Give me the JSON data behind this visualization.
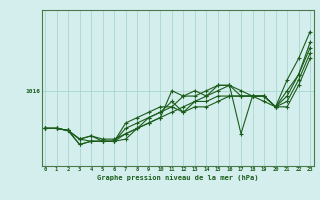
{
  "title": "Graphe pression niveau de la mer (hPa)",
  "bg_color": "#d4eeed",
  "grid_color": "#a8d5d0",
  "line_color": "#1a5c1a",
  "axis_color": "#4a7a4a",
  "x_ticks": [
    0,
    1,
    2,
    3,
    4,
    5,
    6,
    7,
    8,
    9,
    10,
    11,
    12,
    13,
    14,
    15,
    16,
    17,
    18,
    19,
    20,
    21,
    22,
    23
  ],
  "y_label_value": 1016,
  "series": [
    [
      1012.5,
      1012.5,
      1012.3,
      1011.5,
      1011.8,
      1011.5,
      1011.5,
      1012.0,
      1012.5,
      1013.0,
      1013.5,
      1016.0,
      1015.5,
      1016.0,
      1015.5,
      1016.5,
      1016.5,
      1012.0,
      1015.5,
      1015.5,
      1014.5,
      1017.0,
      1019.0,
      1021.5
    ],
    [
      1012.5,
      1012.5,
      1012.3,
      1011.0,
      1011.3,
      1011.3,
      1011.3,
      1011.5,
      1012.5,
      1013.0,
      1013.5,
      1014.0,
      1014.5,
      1015.0,
      1015.0,
      1015.5,
      1015.5,
      1015.5,
      1015.5,
      1015.5,
      1014.5,
      1015.0,
      1017.0,
      1019.5
    ],
    [
      1012.5,
      1012.5,
      1012.3,
      1011.5,
      1011.3,
      1011.3,
      1011.3,
      1013.0,
      1013.5,
      1014.0,
      1014.5,
      1014.5,
      1015.5,
      1015.5,
      1016.0,
      1016.5,
      1016.5,
      1015.5,
      1015.5,
      1015.5,
      1014.5,
      1016.0,
      1017.5,
      1020.5
    ],
    [
      1012.5,
      1012.5,
      1012.3,
      1011.0,
      1011.3,
      1011.3,
      1011.3,
      1012.0,
      1012.5,
      1013.5,
      1014.0,
      1015.0,
      1014.0,
      1014.5,
      1014.5,
      1015.0,
      1015.5,
      1015.5,
      1015.5,
      1015.0,
      1014.5,
      1014.5,
      1016.5,
      1019.0
    ],
    [
      1012.5,
      1012.5,
      1012.3,
      1011.5,
      1011.8,
      1011.3,
      1011.3,
      1012.5,
      1013.0,
      1013.5,
      1014.0,
      1014.5,
      1014.0,
      1015.0,
      1015.5,
      1016.0,
      1016.5,
      1016.0,
      1015.5,
      1015.5,
      1014.5,
      1015.5,
      1017.5,
      1020.0
    ]
  ],
  "ylim_min": 1009.0,
  "ylim_max": 1023.5,
  "xlim_min": -0.3,
  "xlim_max": 23.3
}
